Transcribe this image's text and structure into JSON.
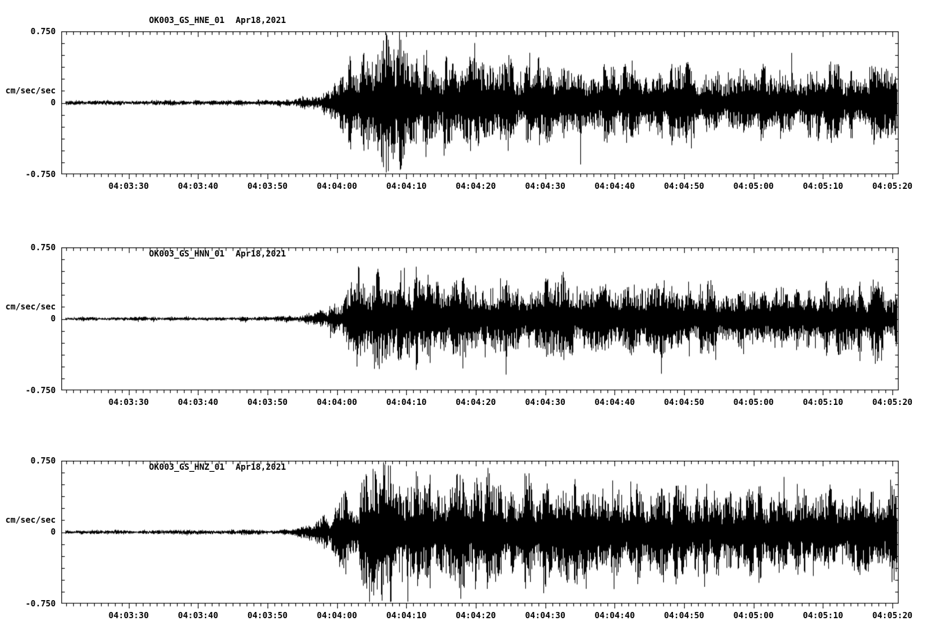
{
  "page": {
    "background_color": "#ffffff",
    "ink_color": "#000000",
    "description": "Three-component strong-motion seismogram record section, station OK003"
  },
  "chart_data": [
    {
      "type": "line",
      "title": "OK003_GS_HNE_01",
      "date": "Apr18,2021",
      "ylabel": "cm/sec/sec",
      "ylim": [
        -0.75,
        0.75
      ],
      "y_tick_labels": [
        "0.750",
        "0",
        "-0.750"
      ],
      "y_minor_tick": 0.125,
      "x_start_time": "04:03:20",
      "x_end_time": "04:05:21",
      "duration_sec": 120.6,
      "x_first_tick_sec": 9.7,
      "x_tick_interval_sec": 10,
      "x_minor_tick_sec": 1,
      "x_tick_labels": [
        "04:03:30",
        "04:03:40",
        "04:03:50",
        "04:04:00",
        "04:04:10",
        "04:04:20",
        "04:04:30",
        "04:04:40",
        "04:04:50",
        "04:05:00",
        "04:05:10",
        "04:05:20"
      ],
      "seed": 11,
      "envelope_units": "peak amplitude (cm/sec/sec) vs seconds after 04:03:20",
      "envelope": [
        [
          0,
          0.018
        ],
        [
          20,
          0.02
        ],
        [
          30,
          0.022
        ],
        [
          34,
          0.035
        ],
        [
          37,
          0.07
        ],
        [
          39,
          0.14
        ],
        [
          40.5,
          0.26
        ],
        [
          42,
          0.36
        ],
        [
          44,
          0.44
        ],
        [
          46,
          0.52
        ],
        [
          48,
          0.5
        ],
        [
          50,
          0.44
        ],
        [
          53,
          0.4
        ],
        [
          56,
          0.36
        ],
        [
          59,
          0.33
        ],
        [
          62,
          0.36
        ],
        [
          65,
          0.3
        ],
        [
          68,
          0.33
        ],
        [
          72,
          0.3
        ],
        [
          76,
          0.28
        ],
        [
          80,
          0.3
        ],
        [
          84,
          0.27
        ],
        [
          88,
          0.3
        ],
        [
          92,
          0.26
        ],
        [
          96,
          0.29
        ],
        [
          100,
          0.27
        ],
        [
          104,
          0.3
        ],
        [
          108,
          0.28
        ],
        [
          112,
          0.31
        ],
        [
          116,
          0.29
        ],
        [
          120.6,
          0.32
        ]
      ]
    },
    {
      "type": "line",
      "title": "OK003_GS_HNN_01",
      "date": "Apr18,2021",
      "ylabel": "cm/sec/sec",
      "ylim": [
        -0.75,
        0.75
      ],
      "y_tick_labels": [
        "0.750",
        "0",
        "-0.750"
      ],
      "y_minor_tick": 0.125,
      "x_start_time": "04:03:20",
      "x_end_time": "04:05:21",
      "duration_sec": 120.6,
      "x_first_tick_sec": 9.7,
      "x_tick_interval_sec": 10,
      "x_minor_tick_sec": 1,
      "x_tick_labels": [
        "04:03:30",
        "04:03:40",
        "04:03:50",
        "04:04:00",
        "04:04:10",
        "04:04:20",
        "04:04:30",
        "04:04:40",
        "04:04:50",
        "04:05:00",
        "04:05:10",
        "04:05:20"
      ],
      "seed": 22,
      "envelope_units": "peak amplitude (cm/sec/sec) vs seconds after 04:03:20",
      "envelope": [
        [
          0,
          0.015
        ],
        [
          20,
          0.018
        ],
        [
          30,
          0.02
        ],
        [
          34,
          0.03
        ],
        [
          37,
          0.06
        ],
        [
          39,
          0.12
        ],
        [
          41,
          0.24
        ],
        [
          43,
          0.4
        ],
        [
          45,
          0.46
        ],
        [
          47,
          0.42
        ],
        [
          49,
          0.38
        ],
        [
          52,
          0.34
        ],
        [
          55,
          0.3
        ],
        [
          58,
          0.33
        ],
        [
          61,
          0.29
        ],
        [
          64,
          0.31
        ],
        [
          68,
          0.28
        ],
        [
          72,
          0.3
        ],
        [
          76,
          0.27
        ],
        [
          80,
          0.29
        ],
        [
          84,
          0.26
        ],
        [
          88,
          0.28
        ],
        [
          92,
          0.27
        ],
        [
          96,
          0.29
        ],
        [
          100,
          0.26
        ],
        [
          104,
          0.28
        ],
        [
          108,
          0.29
        ],
        [
          112,
          0.3
        ],
        [
          116,
          0.28
        ],
        [
          120.6,
          0.31
        ]
      ]
    },
    {
      "type": "line",
      "title": "OK003_GS_HNZ_01",
      "date": "Apr18,2021",
      "ylabel": "cm/sec/sec",
      "ylim": [
        -0.75,
        0.75
      ],
      "y_tick_labels": [
        "0.750",
        "0",
        "-0.750"
      ],
      "y_minor_tick": 0.125,
      "x_start_time": "04:03:20",
      "x_end_time": "04:05:21",
      "duration_sec": 120.6,
      "x_first_tick_sec": 9.7,
      "x_tick_interval_sec": 10,
      "x_minor_tick_sec": 1,
      "x_tick_labels": [
        "04:03:30",
        "04:03:40",
        "04:03:50",
        "04:04:00",
        "04:04:10",
        "04:04:20",
        "04:04:30",
        "04:04:40",
        "04:04:50",
        "04:05:00",
        "04:05:10",
        "04:05:20"
      ],
      "seed": 33,
      "envelope_units": "peak amplitude (cm/sec/sec) vs seconds after 04:03:20",
      "envelope": [
        [
          0,
          0.015
        ],
        [
          20,
          0.018
        ],
        [
          30,
          0.02
        ],
        [
          33,
          0.03
        ],
        [
          36,
          0.06
        ],
        [
          38,
          0.12
        ],
        [
          40,
          0.24
        ],
        [
          42,
          0.36
        ],
        [
          44,
          0.46
        ],
        [
          46,
          0.52
        ],
        [
          48,
          0.48
        ],
        [
          51,
          0.44
        ],
        [
          54,
          0.42
        ],
        [
          57,
          0.44
        ],
        [
          60,
          0.4
        ],
        [
          63,
          0.44
        ],
        [
          66,
          0.4
        ],
        [
          70,
          0.42
        ],
        [
          74,
          0.38
        ],
        [
          78,
          0.4
        ],
        [
          82,
          0.36
        ],
        [
          86,
          0.38
        ],
        [
          90,
          0.35
        ],
        [
          94,
          0.37
        ],
        [
          98,
          0.34
        ],
        [
          102,
          0.36
        ],
        [
          106,
          0.35
        ],
        [
          110,
          0.36
        ],
        [
          114,
          0.34
        ],
        [
          120.6,
          0.36
        ]
      ]
    }
  ]
}
